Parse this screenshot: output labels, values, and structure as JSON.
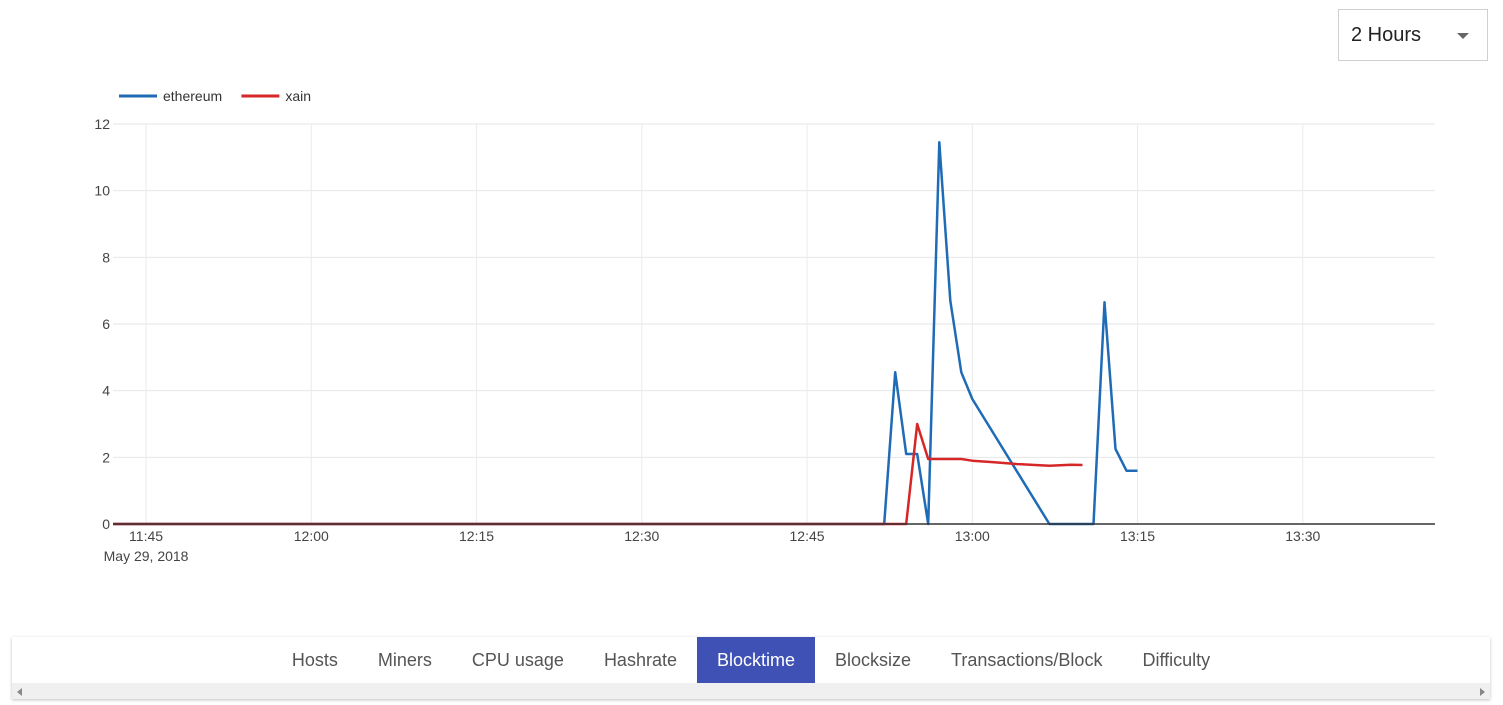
{
  "range_select": {
    "value": "2 Hours"
  },
  "tabs": [
    {
      "label": "Hosts",
      "active": false
    },
    {
      "label": "Miners",
      "active": false
    },
    {
      "label": "CPU usage",
      "active": false
    },
    {
      "label": "Hashrate",
      "active": false
    },
    {
      "label": "Blocktime",
      "active": true
    },
    {
      "label": "Blocksize",
      "active": false
    },
    {
      "label": "Transactions/Block",
      "active": false
    },
    {
      "label": "Difficulty",
      "active": false
    }
  ],
  "chart_data": {
    "type": "line",
    "title": "",
    "xlabel": "",
    "ylabel": "",
    "date_label": "May 29, 2018",
    "x_axis_range": [
      "11:42",
      "13:42"
    ],
    "ylim": [
      0,
      12
    ],
    "y_ticks": [
      0,
      2,
      4,
      6,
      8,
      10,
      12
    ],
    "x_ticks": [
      "11:45",
      "12:00",
      "12:15",
      "12:30",
      "12:45",
      "13:00",
      "13:15",
      "13:30"
    ],
    "grid": true,
    "legend_position": "top-left",
    "series": [
      {
        "name": "ethereum",
        "color": "#1f6bb5",
        "points": [
          [
            "11:42",
            0
          ],
          [
            "12:52",
            0
          ],
          [
            "12:53",
            4.55
          ],
          [
            "12:54",
            2.1
          ],
          [
            "12:55",
            2.1
          ],
          [
            "12:56",
            0
          ],
          [
            "12:57",
            11.45
          ],
          [
            "12:58",
            6.7
          ],
          [
            "12:59",
            4.55
          ],
          [
            "13:00",
            3.75
          ],
          [
            "13:07",
            0
          ],
          [
            "13:11",
            0
          ],
          [
            "13:12",
            6.65
          ],
          [
            "13:13",
            2.25
          ],
          [
            "13:14",
            1.6
          ],
          [
            "13:15",
            1.6
          ]
        ]
      },
      {
        "name": "xain",
        "color": "#d62728",
        "points": [
          [
            "11:42",
            0
          ],
          [
            "12:54",
            0
          ],
          [
            "12:55",
            3.0
          ],
          [
            "12:56",
            1.95
          ],
          [
            "12:57",
            1.95
          ],
          [
            "12:58",
            1.95
          ],
          [
            "12:59",
            1.95
          ],
          [
            "13:00",
            1.9
          ],
          [
            "13:02",
            1.85
          ],
          [
            "13:04",
            1.8
          ],
          [
            "13:07",
            1.75
          ],
          [
            "13:09",
            1.78
          ],
          [
            "13:10",
            1.77
          ]
        ]
      }
    ]
  }
}
